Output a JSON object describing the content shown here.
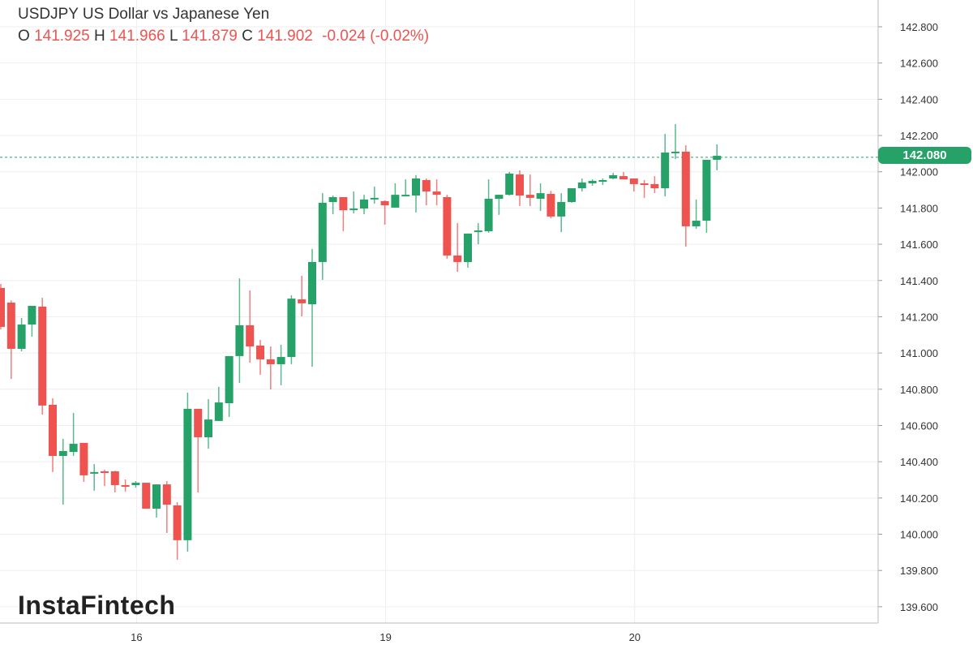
{
  "header": {
    "title": "USDJPY US Dollar vs Japanese Yen",
    "o_label": "O",
    "o_value": "141.925",
    "h_label": "H",
    "h_value": "141.966",
    "l_label": "L",
    "l_value": "141.879",
    "c_label": "C",
    "c_value": "141.902",
    "change": "-0.024 (-0.02%)"
  },
  "watermark": "InstaFintech",
  "last_price_label": "142.080",
  "colors": {
    "up": "#26a269",
    "down": "#ef5350",
    "grid": "#eeeeee",
    "text": "#333333"
  },
  "chart_data": {
    "type": "candlestick",
    "title": "USDJPY US Dollar vs Japanese Yen",
    "ylim": [
      139.55,
      142.92
    ],
    "y_ticks": [
      "142.800",
      "142.600",
      "142.400",
      "142.200",
      "142.000",
      "141.800",
      "141.600",
      "141.400",
      "141.200",
      "141.000",
      "140.800",
      "140.600",
      "140.400",
      "140.200",
      "140.000",
      "139.800",
      "139.600"
    ],
    "x_ticks": [
      {
        "label": "16",
        "candle": 13
      },
      {
        "label": "19",
        "candle": 37
      },
      {
        "label": "20",
        "candle": 61
      }
    ],
    "grid": true,
    "last_price": 142.08,
    "candles": [
      [
        141.359,
        141.381,
        141.13,
        141.144
      ],
      [
        141.278,
        141.29,
        140.857,
        141.023
      ],
      [
        141.023,
        141.193,
        141.009,
        141.157
      ],
      [
        141.157,
        141.26,
        141.09,
        141.26
      ],
      [
        141.256,
        141.305,
        140.66,
        140.71
      ],
      [
        140.714,
        140.75,
        140.343,
        140.432
      ],
      [
        140.432,
        140.526,
        140.163,
        140.459
      ],
      [
        140.454,
        140.669,
        140.432,
        140.499
      ],
      [
        140.504,
        140.504,
        140.289,
        140.325
      ],
      [
        140.334,
        140.387,
        140.24,
        140.343
      ],
      [
        140.347,
        140.356,
        140.266,
        140.338
      ],
      [
        140.347,
        140.35,
        140.231,
        140.271
      ],
      [
        140.271,
        140.302,
        140.235,
        140.262
      ],
      [
        140.271,
        140.293,
        140.257,
        140.284
      ],
      [
        140.284,
        140.284,
        140.141,
        140.141
      ],
      [
        140.141,
        140.275,
        140.092,
        140.275
      ],
      [
        140.275,
        140.293,
        140.007,
        140.163
      ],
      [
        140.159,
        140.177,
        139.859,
        139.967
      ],
      [
        139.967,
        140.781,
        139.904,
        140.692
      ],
      [
        140.692,
        140.692,
        140.231,
        140.535
      ],
      [
        140.535,
        140.745,
        140.472,
        140.633
      ],
      [
        140.625,
        140.813,
        140.625,
        140.727
      ],
      [
        140.723,
        140.983,
        140.647,
        140.983
      ],
      [
        140.983,
        141.412,
        140.835,
        141.153
      ],
      [
        141.153,
        141.345,
        140.947,
        141.036
      ],
      [
        141.041,
        141.072,
        140.88,
        140.965
      ],
      [
        140.965,
        141.036,
        140.799,
        140.938
      ],
      [
        140.938,
        141.045,
        140.822,
        140.978
      ],
      [
        140.978,
        141.318,
        140.938,
        141.3
      ],
      [
        141.296,
        141.426,
        141.202,
        141.274
      ],
      [
        141.269,
        141.574,
        140.924,
        141.502
      ],
      [
        141.502,
        141.882,
        141.403,
        141.829
      ],
      [
        141.833,
        141.869,
        141.766,
        141.86
      ],
      [
        141.86,
        141.86,
        141.672,
        141.788
      ],
      [
        141.788,
        141.891,
        141.77,
        141.797
      ],
      [
        141.797,
        141.873,
        141.766,
        141.847
      ],
      [
        141.847,
        141.918,
        141.824,
        141.856
      ],
      [
        141.838,
        141.842,
        141.708,
        141.815
      ],
      [
        141.802,
        141.936,
        141.802,
        141.873
      ],
      [
        141.869,
        141.958,
        141.864,
        141.873
      ],
      [
        141.869,
        141.981,
        141.775,
        141.963
      ],
      [
        141.954,
        141.963,
        141.815,
        141.891
      ],
      [
        141.891,
        141.958,
        141.815,
        141.873
      ],
      [
        141.86,
        141.873,
        141.52,
        141.538
      ],
      [
        141.538,
        141.717,
        141.448,
        141.502
      ],
      [
        141.502,
        141.659,
        141.471,
        141.659
      ],
      [
        141.667,
        141.717,
        141.6,
        141.676
      ],
      [
        141.672,
        141.958,
        141.663,
        141.851
      ],
      [
        141.851,
        141.873,
        141.762,
        141.873
      ],
      [
        141.873,
        141.999,
        141.869,
        141.99
      ],
      [
        141.985,
        142.008,
        141.811,
        141.869
      ],
      [
        141.873,
        141.985,
        141.811,
        141.856
      ],
      [
        141.851,
        141.936,
        141.784,
        141.882
      ],
      [
        141.878,
        141.895,
        141.744,
        141.753
      ],
      [
        141.753,
        141.882,
        141.667,
        141.833
      ],
      [
        141.833,
        141.909,
        141.829,
        141.909
      ],
      [
        141.909,
        141.963,
        141.891,
        141.941
      ],
      [
        141.936,
        141.958,
        141.923,
        141.95
      ],
      [
        141.945,
        141.963,
        141.927,
        141.954
      ],
      [
        141.963,
        141.994,
        141.958,
        141.981
      ],
      [
        141.976,
        141.999,
        141.958,
        141.958
      ],
      [
        141.963,
        141.963,
        141.891,
        141.932
      ],
      [
        141.936,
        141.954,
        141.856,
        141.927
      ],
      [
        141.932,
        141.976,
        141.882,
        141.909
      ],
      [
        141.909,
        142.209,
        141.864,
        142.106
      ],
      [
        142.102,
        142.263,
        142.07,
        142.111
      ],
      [
        142.111,
        142.146,
        141.587,
        141.699
      ],
      [
        141.699,
        141.847,
        141.685,
        141.73
      ],
      [
        141.73,
        142.066,
        141.663,
        142.066
      ],
      [
        142.066,
        142.151,
        142.008,
        142.088
      ]
    ]
  }
}
